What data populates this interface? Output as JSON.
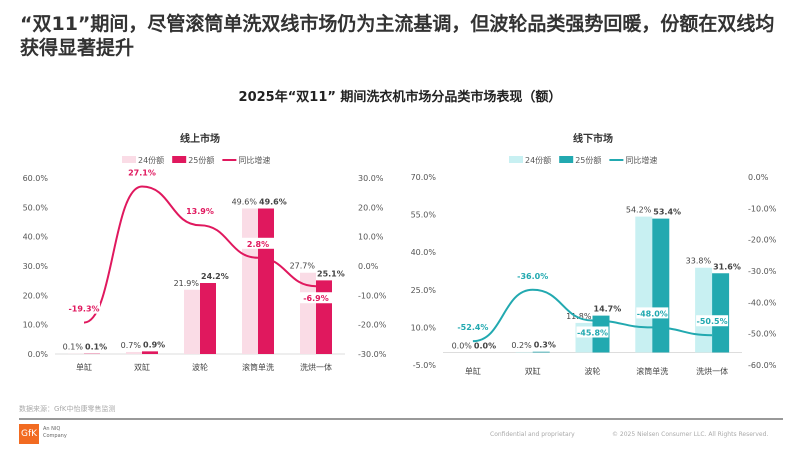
{
  "headline": "“双11”期间，尽管滚筒单洗双线市场仍为主流基调，但波轮品类强势回暖，份额在双线均获得显著提升",
  "subtitle": "2025年“双11” 期间洗衣机市场分品类市场表现（额）",
  "footer": {
    "source": "数据来源：GfK中怡康零售监测",
    "logo": "GfK",
    "company": "An NIQ Company",
    "confidential": "Confidential and proprietary",
    "copyright": "© 2025 Nielsen Consumer LLC. All Rights Reserved."
  },
  "chart_data": [
    {
      "type": "bar+line",
      "title": "线上市场",
      "categories": [
        "单缸",
        "双缸",
        "波轮",
        "滚筒单洗",
        "洗烘一体"
      ],
      "series": [
        {
          "name": "24份额",
          "values": [
            0.1,
            0.7,
            21.9,
            49.6,
            27.7
          ],
          "color": "#fadce6",
          "axis": "left"
        },
        {
          "name": "25份额",
          "values": [
            0.1,
            0.9,
            24.2,
            49.6,
            25.1
          ],
          "color": "#e0185e",
          "axis": "left"
        },
        {
          "name": "同比增速",
          "values": [
            -19.3,
            27.1,
            13.9,
            2.8,
            -6.9
          ],
          "color": "#e0185e",
          "axis": "right",
          "type": "line"
        }
      ],
      "ylim": [
        0,
        60
      ],
      "yticks": [
        0,
        10,
        20,
        30,
        40,
        50,
        60
      ],
      "y2lim": [
        -30,
        30
      ],
      "y2ticks": [
        -30,
        -20,
        -10,
        0,
        10,
        20,
        30
      ],
      "legend": "top"
    },
    {
      "type": "bar+line",
      "title": "线下市场",
      "categories": [
        "单缸",
        "双缸",
        "波轮",
        "滚筒单洗",
        "洗烘一体"
      ],
      "series": [
        {
          "name": "24份额",
          "values": [
            0.0,
            0.2,
            11.8,
            54.2,
            33.8
          ],
          "color": "#c8f0f2",
          "axis": "left"
        },
        {
          "name": "25份额",
          "values": [
            0.0,
            0.3,
            14.7,
            53.4,
            31.6
          ],
          "color": "#22a9b0",
          "axis": "left"
        },
        {
          "name": "同比增速",
          "values": [
            -52.4,
            -36.0,
            -45.8,
            -48.0,
            -50.5
          ],
          "color": "#22a9b0",
          "axis": "right",
          "type": "line"
        }
      ],
      "ylim": [
        -5,
        70
      ],
      "yticks": [
        -5,
        10,
        25,
        40,
        55,
        70
      ],
      "y2lim": [
        -60,
        0
      ],
      "y2ticks": [
        -60,
        -50,
        -40,
        -30,
        -20,
        -10,
        0
      ],
      "legend": "top"
    }
  ]
}
